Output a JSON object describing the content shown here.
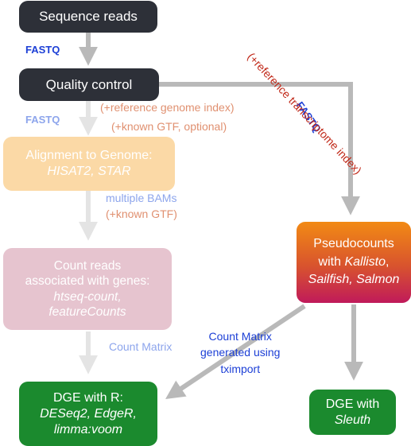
{
  "nodes": {
    "sequence_reads": "Sequence reads",
    "quality_control": "Quality control",
    "alignment": {
      "line1": "Alignment to Genome:",
      "line2": "HISAT2, STAR"
    },
    "count_reads": {
      "line1": "Count reads",
      "line2": "associated with genes:",
      "line3": "htseq-count,",
      "line4": "featureCounts"
    },
    "pseudocounts": {
      "line1": "Pseudocounts",
      "line2_prefix": "with ",
      "line2_tool": "Kallisto",
      "line2_suffix": ",",
      "line3": "Sailfish, Salmon"
    },
    "dge_r": {
      "line1": "DGE with R:",
      "line2": "DESeq2, EdgeR,",
      "line3": "limma:voom"
    },
    "dge_sleuth": {
      "line1": "DGE with",
      "line2": "Sleuth"
    }
  },
  "labels": {
    "fastq_1": "FASTQ",
    "fastq_2": "FASTQ",
    "fastq_diag": "FASTQ",
    "ref_genome": "(+reference genome index)",
    "known_gtf_optional": "(+known GTF, optional)",
    "multiple_bams": "multiple BAMs",
    "known_gtf": "(+known GTF)",
    "count_matrix": "Count Matrix",
    "count_matrix_tx": {
      "line1": "Count Matrix",
      "line2": "generated using",
      "line3": "tximport"
    },
    "ref_transcriptome": "(+reference transcriptome index)"
  },
  "colors": {
    "dark_node": "#2d3038",
    "faded_orange": "#fbd9a6",
    "faded_pink": "#e6c4cf",
    "green": "#1b8a2e",
    "gradient_top": "#f28a14",
    "gradient_bottom": "#c01a5a",
    "arrow_gray": "#b9b9b9",
    "arrow_light": "#e4e4e4",
    "blue_label": "#1c3fd6",
    "faded_blue": "#8da5ec",
    "salmon_label": "#e09070",
    "red_label": "#c02818"
  }
}
